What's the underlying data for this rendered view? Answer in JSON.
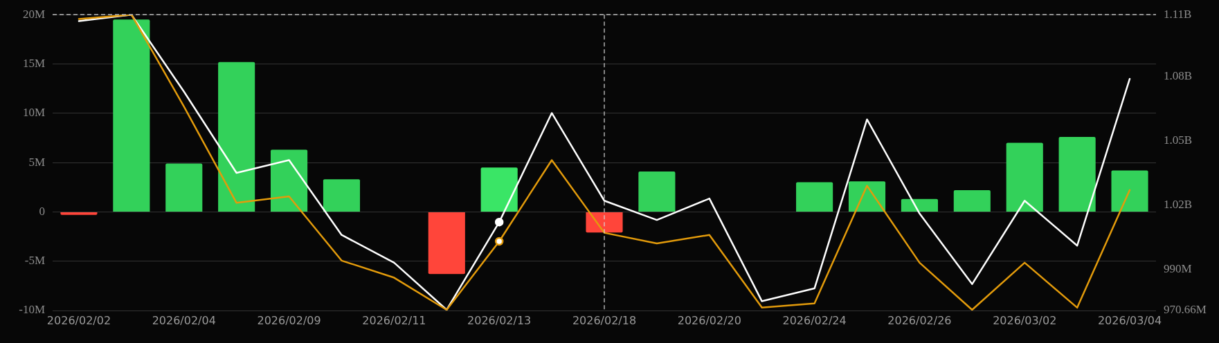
{
  "chart_data": {
    "type": "bar",
    "categories": [
      "2026/02/02",
      null,
      "2026/02/04",
      null,
      "2026/02/09",
      null,
      "2026/02/11",
      null,
      "2026/02/13",
      null,
      "2026/02/18",
      null,
      "2026/02/20",
      null,
      "2026/02/24",
      null,
      "2026/02/26",
      null,
      "2026/03/02",
      null,
      "2026/03/04"
    ],
    "series": [
      {
        "colors": [
          "#ff453a",
          "#33d15a",
          "#33d15a",
          "#33d15a",
          "#33d15a",
          "#33d15a",
          "#33d15a",
          "#ff453a",
          "#3ae566",
          "#33d15a",
          "#ff453a",
          "#33d15a",
          "#33d15a",
          "#33d15a",
          "#33d15a",
          "#33d15a",
          "#33d15a",
          "#33d15a",
          "#33d15a",
          "#33d15a",
          "#33d15a"
        ],
        "values": [
          -0.3,
          19.5,
          4.9,
          15.2,
          6.3,
          3.3,
          null,
          -6.3,
          4.5,
          null,
          -2.1,
          4.1,
          null,
          null,
          3.0,
          3.1,
          1.3,
          2.2,
          7.0,
          7.6,
          4.2
        ]
      },
      {
        "type": "line",
        "axis": "y2",
        "color": "#ffffff",
        "values": [
          1106000000,
          1109000000,
          1073000000,
          1035000000,
          1041000000,
          1006000000,
          993000000,
          971000000,
          1012000000,
          1063000000,
          1022000000,
          1013000000,
          1023000000,
          975000000,
          981000000,
          1060000000,
          1016000000,
          983000000,
          1022000000,
          1001000000,
          1079000000
        ]
      },
      {
        "type": "line",
        "axis": "y2",
        "color": "#e39b0b",
        "values": [
          1107000000,
          1109000000,
          1066000000,
          1021000000,
          1024000000,
          994000000,
          986000000,
          971000000,
          1003000000,
          1041000000,
          1007000000,
          1002000000,
          1006000000,
          972000000,
          974000000,
          1029000000,
          993000000,
          971000000,
          993000000,
          972000000,
          1027000000
        ]
      },
      {
        "type": "scatter",
        "axis": "y2",
        "marker": "circle",
        "x": [
          "2026/02/13"
        ],
        "color": "#ffffff",
        "values": [
          1012000000
        ]
      },
      {
        "type": "scatter",
        "axis": "y2",
        "marker": "circle",
        "x": [
          "2026/02/13"
        ],
        "color": "#e39b0b",
        "values": [
          1003000000
        ]
      }
    ],
    "ylim": [
      -10,
      20
    ],
    "yticks": [
      {
        "value": -10,
        "label": "-10M"
      },
      {
        "value": -5,
        "label": "-5M"
      },
      0,
      {
        "value": 5,
        "label": "5M"
      },
      {
        "value": 10,
        "label": "10M"
      },
      {
        "value": 15,
        "label": "15M"
      },
      {
        "value": 20,
        "label": "20M"
      }
    ],
    "y2lim": [
      970660000,
      1109000000
    ],
    "y2ticks": [
      {
        "value": 970660000,
        "label": "970.66M"
      },
      {
        "value": 990000000,
        "label": "990M"
      },
      {
        "value": 1020000000,
        "label": "1.02B"
      },
      {
        "value": 1050000000,
        "label": "1.05B"
      },
      {
        "value": 1080000000,
        "label": "1.08B"
      },
      {
        "value": 1109000000,
        "label": "1.11B"
      }
    ],
    "ref_lines": [
      {
        "axis": "x",
        "value": "2026/02/18",
        "color": "#d9d9d9",
        "line_style": "dashed"
      },
      {
        "axis": "y",
        "value": 20,
        "color": "#d9d9d9",
        "line_style": "dashed"
      }
    ],
    "grid": "y"
  }
}
